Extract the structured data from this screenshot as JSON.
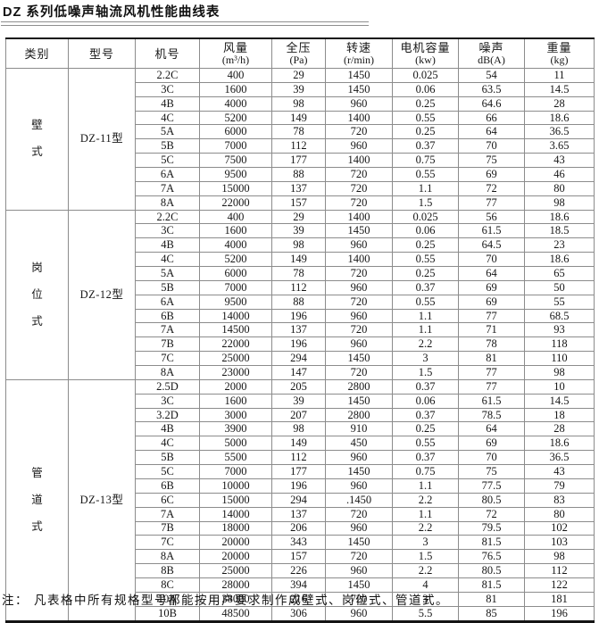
{
  "title": "DZ 系列低噪声轴流风机性能曲线表",
  "table": {
    "columns": [
      {
        "label": "类别",
        "unit": ""
      },
      {
        "label": "型号",
        "unit": ""
      },
      {
        "label": "机号",
        "unit": ""
      },
      {
        "label": "风量",
        "unit": "(m³/h)"
      },
      {
        "label": "全压",
        "unit": "(Pa)"
      },
      {
        "label": "转速",
        "unit": "(r/min)"
      },
      {
        "label": "电机容量",
        "unit": "(kw)"
      },
      {
        "label": "噪声",
        "unit": "dB(A)"
      },
      {
        "label": "重量",
        "unit": "(kg)"
      }
    ],
    "sections": [
      {
        "category": "壁式",
        "category_chars": [
          "壁",
          "式"
        ],
        "model": "DZ-11型",
        "rows": [
          [
            "2.2C",
            "400",
            "29",
            "1450",
            "0.025",
            "54",
            "11"
          ],
          [
            "3C",
            "1600",
            "39",
            "1450",
            "0.06",
            "63.5",
            "14.5"
          ],
          [
            "4B",
            "4000",
            "98",
            "960",
            "0.25",
            "64.6",
            "28"
          ],
          [
            "4C",
            "5200",
            "149",
            "1400",
            "0.55",
            "66",
            "18.6"
          ],
          [
            "5A",
            "6000",
            "78",
            "720",
            "0.25",
            "64",
            "36.5"
          ],
          [
            "5B",
            "7000",
            "112",
            "960",
            "0.37",
            "70",
            "3.65"
          ],
          [
            "5C",
            "7500",
            "177",
            "1400",
            "0.75",
            "75",
            "43"
          ],
          [
            "6A",
            "9500",
            "88",
            "720",
            "0.55",
            "69",
            "46"
          ],
          [
            "7A",
            "15000",
            "137",
            "720",
            "1.1",
            "72",
            "80"
          ],
          [
            "8A",
            "22000",
            "157",
            "720",
            "1.5",
            "77",
            "98"
          ]
        ]
      },
      {
        "category": "岗位式",
        "category_chars": [
          "岗",
          "位",
          "式"
        ],
        "model": "DZ-12型",
        "rows": [
          [
            "2.2C",
            "400",
            "29",
            "1400",
            "0.025",
            "56",
            "18.6"
          ],
          [
            "3C",
            "1600",
            "39",
            "1450",
            "0.06",
            "61.5",
            "18.5"
          ],
          [
            "4B",
            "4000",
            "98",
            "960",
            "0.25",
            "64.5",
            "23"
          ],
          [
            "4C",
            "5200",
            "149",
            "1400",
            "0.55",
            "70",
            "18.6"
          ],
          [
            "5A",
            "6000",
            "78",
            "720",
            "0.25",
            "64",
            "65"
          ],
          [
            "5B",
            "7000",
            "112",
            "960",
            "0.37",
            "69",
            "50"
          ],
          [
            "6A",
            "9500",
            "88",
            "720",
            "0.55",
            "69",
            "55"
          ],
          [
            "6B",
            "14000",
            "196",
            "960",
            "1.1",
            "77",
            "68.5"
          ],
          [
            "7A",
            "14500",
            "137",
            "720",
            "1.1",
            "71",
            "93"
          ],
          [
            "7B",
            "22000",
            "196",
            "960",
            "2.2",
            "78",
            "118"
          ],
          [
            "7C",
            "25000",
            "294",
            "1450",
            "3",
            "81",
            "110"
          ],
          [
            "8A",
            "23000",
            "147",
            "720",
            "1.5",
            "77",
            "98"
          ]
        ]
      },
      {
        "category": "管道式",
        "category_chars": [
          "管",
          "道",
          "式"
        ],
        "model": "DZ-13型",
        "rows": [
          [
            "2.5D",
            "2000",
            "205",
            "2800",
            "0.37",
            "77",
            "10"
          ],
          [
            "3C",
            "1600",
            "39",
            "1450",
            "0.06",
            "61.5",
            "14.5"
          ],
          [
            "3.2D",
            "3000",
            "207",
            "2800",
            "0.37",
            "78.5",
            "18"
          ],
          [
            "4B",
            "3900",
            "98",
            "910",
            "0.25",
            "64",
            "28"
          ],
          [
            "4C",
            "5000",
            "149",
            "450",
            "0.55",
            "69",
            "18.6"
          ],
          [
            "5B",
            "5500",
            "112",
            "960",
            "0.37",
            "70",
            "36.5"
          ],
          [
            "5C",
            "7000",
            "177",
            "1450",
            "0.75",
            "75",
            "43"
          ],
          [
            "6B",
            "10000",
            "196",
            "960",
            "1.1",
            "77.5",
            "79"
          ],
          [
            "6C",
            "15000",
            "294",
            ".1450",
            "2.2",
            "80.5",
            "83"
          ],
          [
            "7A",
            "14000",
            "137",
            "720",
            "1.1",
            "72",
            "80"
          ],
          [
            "7B",
            "18000",
            "206",
            "960",
            "2.2",
            "79.5",
            "102"
          ],
          [
            "7C",
            "20000",
            "343",
            "1450",
            "3",
            "81.5",
            "103"
          ],
          [
            "8A",
            "20000",
            "157",
            "720",
            "1.5",
            "76.5",
            "98"
          ],
          [
            "8B",
            "25000",
            "226",
            "960",
            "2.2",
            "80.5",
            "112"
          ],
          [
            "8C",
            "28000",
            "394",
            "1450",
            "4",
            "81.5",
            "122"
          ],
          [
            "10A",
            "38000",
            "216",
            "720",
            "3",
            "81",
            "181"
          ],
          [
            "10B",
            "48500",
            "306",
            "960",
            "5.5",
            "85",
            "196"
          ]
        ]
      }
    ]
  },
  "note": {
    "prefix": "注：",
    "text": "凡表格中所有规格型号都能按用户要求制作成壁式、岗位式、管道式。"
  }
}
